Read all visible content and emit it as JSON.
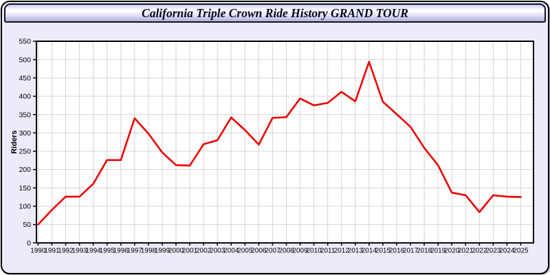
{
  "header": {
    "title": "California Triple Crown Ride History GRAND TOUR"
  },
  "colors": {
    "card_background": "#ebebf9",
    "plot_background": "#ffffff",
    "gridline": "#d4d4d4",
    "axis_frame": "#000000",
    "line": "#ee0000",
    "label_text": "#000000"
  },
  "chart_data": {
    "type": "line",
    "title": "California Triple Crown Ride History GRAND TOUR",
    "xlabel": "",
    "ylabel": "Riders",
    "x": [
      1990,
      1991,
      1992,
      1993,
      1994,
      1995,
      1996,
      1997,
      1998,
      1999,
      2000,
      2001,
      2002,
      2003,
      2004,
      2005,
      2006,
      2007,
      2008,
      2009,
      2010,
      2011,
      2012,
      2013,
      2014,
      2015,
      2016,
      2017,
      2018,
      2019,
      2020,
      2021,
      2022,
      2023,
      2024,
      2025
    ],
    "series": [
      {
        "name": "Riders",
        "color": "#ee0000",
        "values": [
          50,
          90,
          126,
          126,
          161,
          226,
          226,
          340,
          298,
          247,
          212,
          211,
          269,
          280,
          342,
          308,
          268,
          341,
          343,
          394,
          375,
          382,
          412,
          386,
          494,
          385,
          351,
          317,
          259,
          212,
          137,
          130,
          84,
          130,
          126,
          125
        ]
      }
    ],
    "ylim": [
      0,
      550
    ],
    "ytick_step": 50,
    "grid": true,
    "legend": "none"
  }
}
